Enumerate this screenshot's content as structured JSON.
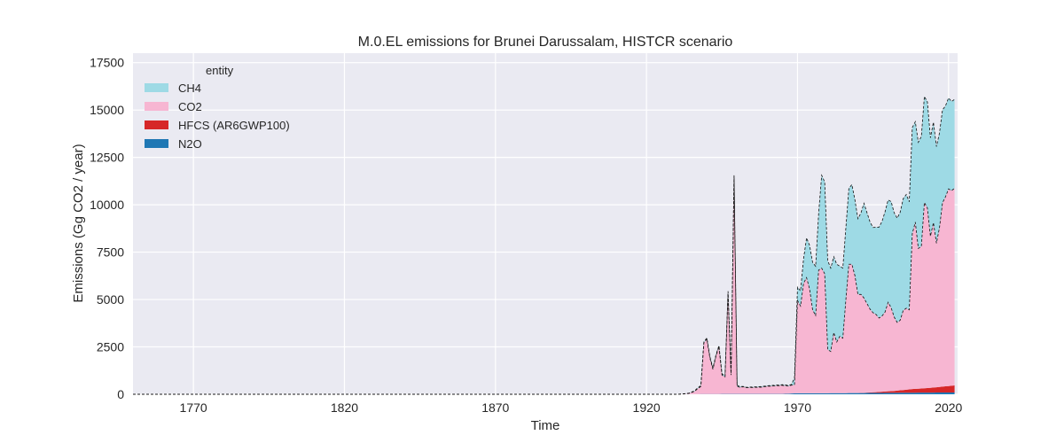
{
  "chart_data": {
    "type": "area",
    "title": "M.0.EL emissions for Brunei Darussalam, HISTCR scenario",
    "xlabel": "Time",
    "ylabel": "Emissions (Gg CO2 / year)",
    "xlim": [
      1750,
      2023
    ],
    "ylim": [
      0,
      18000
    ],
    "xticks": [
      1770,
      1820,
      1870,
      1920,
      1970,
      2020
    ],
    "yticks": [
      0,
      2500,
      5000,
      7500,
      10000,
      12500,
      15000,
      17500
    ],
    "grid": true,
    "legend": {
      "title": "entity",
      "placement": "top-left"
    },
    "stack_order": [
      "N2O",
      "HFCS (AR6GWP100)",
      "CO2",
      "CH4"
    ],
    "series": [
      {
        "name": "CH4",
        "color": "#9edae5",
        "points": [
          [
            1750,
            0
          ],
          [
            1930,
            0
          ],
          [
            1934,
            15
          ],
          [
            1937,
            40
          ],
          [
            1940,
            60
          ],
          [
            1942,
            80
          ],
          [
            1944,
            60
          ],
          [
            1946,
            60
          ],
          [
            1947,
            120
          ],
          [
            1948,
            60
          ],
          [
            1949,
            140
          ],
          [
            1950,
            60
          ],
          [
            1952,
            20
          ],
          [
            1955,
            30
          ],
          [
            1960,
            30
          ],
          [
            1965,
            35
          ],
          [
            1968,
            40
          ],
          [
            1970,
            700
          ],
          [
            1971,
            800
          ],
          [
            1972,
            1300
          ],
          [
            1973,
            2100
          ],
          [
            1974,
            2300
          ],
          [
            1975,
            2500
          ],
          [
            1976,
            2600
          ],
          [
            1977,
            3000
          ],
          [
            1978,
            4900
          ],
          [
            1979,
            4850
          ],
          [
            1980,
            4700
          ],
          [
            1981,
            4400
          ],
          [
            1982,
            4000
          ],
          [
            1983,
            4100
          ],
          [
            1984,
            3700
          ],
          [
            1985,
            3700
          ],
          [
            1986,
            3800
          ],
          [
            1987,
            4000
          ],
          [
            1988,
            4200
          ],
          [
            1989,
            4000
          ],
          [
            1990,
            4000
          ],
          [
            1991,
            4300
          ],
          [
            1992,
            5000
          ],
          [
            1993,
            4800
          ],
          [
            1994,
            4600
          ],
          [
            1995,
            4500
          ],
          [
            1996,
            4600
          ],
          [
            1997,
            4800
          ],
          [
            1998,
            5000
          ],
          [
            1999,
            5300
          ],
          [
            2000,
            5400
          ],
          [
            2001,
            5600
          ],
          [
            2002,
            5500
          ],
          [
            2003,
            5500
          ],
          [
            2004,
            5700
          ],
          [
            2005,
            5900
          ],
          [
            2006,
            6000
          ],
          [
            2007,
            5700
          ],
          [
            2008,
            5600
          ],
          [
            2009,
            5300
          ],
          [
            2010,
            5600
          ],
          [
            2011,
            5800
          ],
          [
            2012,
            5600
          ],
          [
            2013,
            5600
          ],
          [
            2014,
            5200
          ],
          [
            2015,
            5300
          ],
          [
            2016,
            5100
          ],
          [
            2017,
            5000
          ],
          [
            2018,
            4900
          ],
          [
            2019,
            4800
          ],
          [
            2020,
            4800
          ],
          [
            2021,
            4700
          ],
          [
            2022,
            4700
          ]
        ]
      },
      {
        "name": "CO2",
        "color": "#f7b6d2",
        "points": [
          [
            1750,
            0
          ],
          [
            1930,
            0
          ],
          [
            1932,
            10
          ],
          [
            1934,
            40
          ],
          [
            1936,
            150
          ],
          [
            1937,
            300
          ],
          [
            1938,
            400
          ],
          [
            1939,
            2700
          ],
          [
            1940,
            2900
          ],
          [
            1941,
            1900
          ],
          [
            1942,
            1300
          ],
          [
            1943,
            2000
          ],
          [
            1944,
            2500
          ],
          [
            1945,
            1000
          ],
          [
            1946,
            900
          ],
          [
            1947,
            5300
          ],
          [
            1948,
            1000
          ],
          [
            1949,
            11400
          ],
          [
            1950,
            400
          ],
          [
            1951,
            350
          ],
          [
            1952,
            380
          ],
          [
            1953,
            330
          ],
          [
            1955,
            340
          ],
          [
            1958,
            360
          ],
          [
            1960,
            400
          ],
          [
            1962,
            420
          ],
          [
            1965,
            450
          ],
          [
            1967,
            400
          ],
          [
            1968,
            440
          ],
          [
            1969,
            450
          ],
          [
            1970,
            4900
          ],
          [
            1971,
            4600
          ],
          [
            1972,
            5800
          ],
          [
            1973,
            6100
          ],
          [
            1974,
            5500
          ],
          [
            1975,
            4400
          ],
          [
            1976,
            4100
          ],
          [
            1977,
            6500
          ],
          [
            1978,
            6600
          ],
          [
            1979,
            6300
          ],
          [
            1980,
            2300
          ],
          [
            1981,
            2200
          ],
          [
            1982,
            3200
          ],
          [
            1983,
            2700
          ],
          [
            1984,
            3000
          ],
          [
            1985,
            2900
          ],
          [
            1986,
            4900
          ],
          [
            1987,
            6800
          ],
          [
            1988,
            6800
          ],
          [
            1989,
            6200
          ],
          [
            1990,
            5200
          ],
          [
            1991,
            5200
          ],
          [
            1992,
            5000
          ],
          [
            1993,
            4700
          ],
          [
            1994,
            4400
          ],
          [
            1995,
            4200
          ],
          [
            1996,
            4100
          ],
          [
            1997,
            3900
          ],
          [
            1998,
            4000
          ],
          [
            1999,
            4200
          ],
          [
            2000,
            4700
          ],
          [
            2001,
            4400
          ],
          [
            2002,
            3900
          ],
          [
            2003,
            3600
          ],
          [
            2004,
            3700
          ],
          [
            2005,
            4200
          ],
          [
            2006,
            4300
          ],
          [
            2007,
            4200
          ],
          [
            2008,
            8200
          ],
          [
            2009,
            8800
          ],
          [
            2010,
            7400
          ],
          [
            2011,
            7500
          ],
          [
            2012,
            9800
          ],
          [
            2013,
            9500
          ],
          [
            2014,
            8000
          ],
          [
            2015,
            8700
          ],
          [
            2016,
            7600
          ],
          [
            2017,
            8400
          ],
          [
            2018,
            9700
          ],
          [
            2019,
            10000
          ],
          [
            2020,
            10400
          ],
          [
            2021,
            10300
          ],
          [
            2022,
            10400
          ]
        ]
      },
      {
        "name": "HFCS (AR6GWP100)",
        "color": "#d62728",
        "points": [
          [
            1750,
            0
          ],
          [
            1990,
            0
          ],
          [
            1992,
            10
          ],
          [
            1994,
            25
          ],
          [
            1996,
            40
          ],
          [
            1998,
            60
          ],
          [
            2000,
            80
          ],
          [
            2002,
            100
          ],
          [
            2004,
            130
          ],
          [
            2006,
            160
          ],
          [
            2008,
            190
          ],
          [
            2010,
            210
          ],
          [
            2012,
            230
          ],
          [
            2014,
            250
          ],
          [
            2016,
            280
          ],
          [
            2018,
            310
          ],
          [
            2020,
            340
          ],
          [
            2022,
            370
          ]
        ]
      },
      {
        "name": "N2O",
        "color": "#1f77b4",
        "points": [
          [
            1750,
            0
          ],
          [
            1930,
            0
          ],
          [
            1935,
            5
          ],
          [
            1940,
            12
          ],
          [
            1945,
            15
          ],
          [
            1949,
            20
          ],
          [
            1950,
            15
          ],
          [
            1955,
            15
          ],
          [
            1960,
            18
          ],
          [
            1965,
            20
          ],
          [
            1970,
            50
          ],
          [
            1975,
            55
          ],
          [
            1980,
            55
          ],
          [
            1985,
            60
          ],
          [
            1990,
            65
          ],
          [
            1995,
            70
          ],
          [
            2000,
            75
          ],
          [
            2005,
            80
          ],
          [
            2010,
            85
          ],
          [
            2015,
            90
          ],
          [
            2020,
            95
          ],
          [
            2022,
            95
          ]
        ]
      }
    ]
  }
}
